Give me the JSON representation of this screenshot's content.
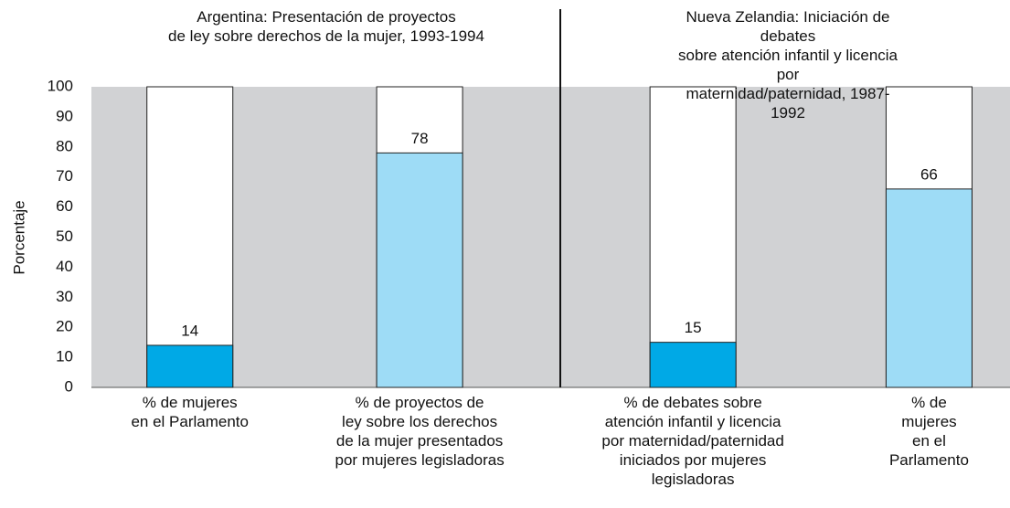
{
  "chart_data": {
    "type": "bar",
    "ylabel": "Porcentaje",
    "ylim": [
      0,
      100
    ],
    "yticks": [
      0,
      10,
      20,
      30,
      40,
      50,
      60,
      70,
      80,
      90,
      100
    ],
    "panels": [
      {
        "title": "Argentina: Presentación de proyectos\nde ley sobre derechos de la mujer, 1993-1994",
        "categories": [
          "% de mujeres\nen el Parlamento",
          "% de proyectos de\nley sobre los derechos\nde la mujer presentados\npor mujeres legisladoras"
        ],
        "values": [
          14,
          78
        ],
        "colors": [
          "#00a9e6",
          "#9edcf6"
        ]
      },
      {
        "title": "Nueva Zelandia: Iniciación de debates\nsobre atención infantil y licencia por\nmaternidad/paternidad, 1987-1992",
        "categories": [
          "% de debates sobre\natención infantil y licencia\npor maternidad/paternidad\niniciados por mujeres\nlegisladoras",
          "% de mujeres\nen el Parlamento"
        ],
        "values": [
          15,
          66
        ],
        "colors": [
          "#00a9e6",
          "#9edcf6"
        ]
      }
    ]
  }
}
